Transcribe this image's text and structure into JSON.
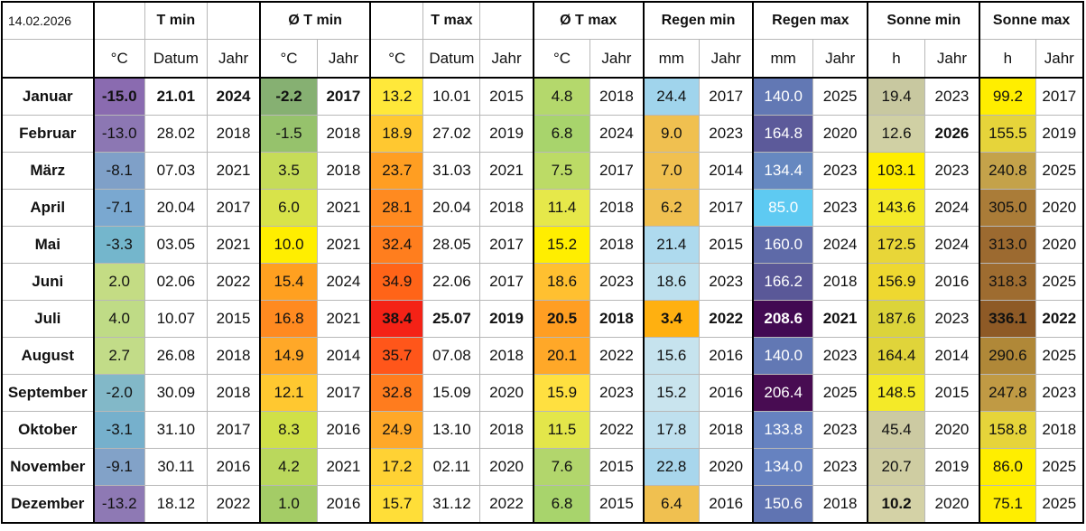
{
  "date": "14.02.2026",
  "headers": {
    "groups": [
      "T min",
      "Ø T min",
      "T max",
      "Ø T max",
      "Regen min",
      "Regen max",
      "Sonne min",
      "Sonne max"
    ],
    "units": [
      "°C",
      "Datum",
      "Jahr",
      "°C",
      "Jahr",
      "°C",
      "Datum",
      "Jahr",
      "°C",
      "Jahr",
      "mm",
      "Jahr",
      "mm",
      "Jahr",
      "h",
      "Jahr",
      "h",
      "Jahr"
    ]
  },
  "rows": [
    {
      "month": "Januar",
      "tmin": "-15.0",
      "tmin_date": "21.01",
      "tmin_year": "2024",
      "avg_tmin": "-2.2",
      "avg_tmin_year": "2017",
      "tmax": "13.2",
      "tmax_date": "10.01",
      "tmax_year": "2015",
      "avg_tmax": "4.8",
      "avg_tmax_year": "2018",
      "rain_min": "24.4",
      "rain_min_year": "2017",
      "rain_max": "140.0",
      "rain_max_year": "2025",
      "sun_min": "19.4",
      "sun_min_year": "2023",
      "sun_max": "99.2",
      "sun_max_year": "2017"
    },
    {
      "month": "Februar",
      "tmin": "-13.0",
      "tmin_date": "28.02",
      "tmin_year": "2018",
      "avg_tmin": "-1.5",
      "avg_tmin_year": "2018",
      "tmax": "18.9",
      "tmax_date": "27.02",
      "tmax_year": "2019",
      "avg_tmax": "6.8",
      "avg_tmax_year": "2024",
      "rain_min": "9.0",
      "rain_min_year": "2023",
      "rain_max": "164.8",
      "rain_max_year": "2020",
      "sun_min": "12.6",
      "sun_min_year": "2026",
      "sun_max": "155.5",
      "sun_max_year": "2019"
    },
    {
      "month": "März",
      "tmin": "-8.1",
      "tmin_date": "07.03",
      "tmin_year": "2021",
      "avg_tmin": "3.5",
      "avg_tmin_year": "2018",
      "tmax": "23.7",
      "tmax_date": "31.03",
      "tmax_year": "2021",
      "avg_tmax": "7.5",
      "avg_tmax_year": "2017",
      "rain_min": "7.0",
      "rain_min_year": "2014",
      "rain_max": "134.4",
      "rain_max_year": "2023",
      "sun_min": "103.1",
      "sun_min_year": "2023",
      "sun_max": "240.8",
      "sun_max_year": "2025"
    },
    {
      "month": "April",
      "tmin": "-7.1",
      "tmin_date": "20.04",
      "tmin_year": "2017",
      "avg_tmin": "6.0",
      "avg_tmin_year": "2021",
      "tmax": "28.1",
      "tmax_date": "20.04",
      "tmax_year": "2018",
      "avg_tmax": "11.4",
      "avg_tmax_year": "2018",
      "rain_min": "6.2",
      "rain_min_year": "2017",
      "rain_max": "85.0",
      "rain_max_year": "2023",
      "sun_min": "143.6",
      "sun_min_year": "2024",
      "sun_max": "305.0",
      "sun_max_year": "2020"
    },
    {
      "month": "Mai",
      "tmin": "-3.3",
      "tmin_date": "03.05",
      "tmin_year": "2021",
      "avg_tmin": "10.0",
      "avg_tmin_year": "2021",
      "tmax": "32.4",
      "tmax_date": "28.05",
      "tmax_year": "2017",
      "avg_tmax": "15.2",
      "avg_tmax_year": "2018",
      "rain_min": "21.4",
      "rain_min_year": "2015",
      "rain_max": "160.0",
      "rain_max_year": "2024",
      "sun_min": "172.5",
      "sun_min_year": "2024",
      "sun_max": "313.0",
      "sun_max_year": "2020"
    },
    {
      "month": "Juni",
      "tmin": "2.0",
      "tmin_date": "02.06",
      "tmin_year": "2022",
      "avg_tmin": "15.4",
      "avg_tmin_year": "2024",
      "tmax": "34.9",
      "tmax_date": "22.06",
      "tmax_year": "2017",
      "avg_tmax": "18.6",
      "avg_tmax_year": "2023",
      "rain_min": "18.6",
      "rain_min_year": "2023",
      "rain_max": "166.2",
      "rain_max_year": "2018",
      "sun_min": "156.9",
      "sun_min_year": "2016",
      "sun_max": "318.3",
      "sun_max_year": "2025"
    },
    {
      "month": "Juli",
      "tmin": "4.0",
      "tmin_date": "10.07",
      "tmin_year": "2015",
      "avg_tmin": "16.8",
      "avg_tmin_year": "2021",
      "tmax": "38.4",
      "tmax_date": "25.07",
      "tmax_year": "2019",
      "avg_tmax": "20.5",
      "avg_tmax_year": "2018",
      "rain_min": "3.4",
      "rain_min_year": "2022",
      "rain_max": "208.6",
      "rain_max_year": "2021",
      "sun_min": "187.6",
      "sun_min_year": "2023",
      "sun_max": "336.1",
      "sun_max_year": "2022"
    },
    {
      "month": "August",
      "tmin": "2.7",
      "tmin_date": "26.08",
      "tmin_year": "2018",
      "avg_tmin": "14.9",
      "avg_tmin_year": "2014",
      "tmax": "35.7",
      "tmax_date": "07.08",
      "tmax_year": "2018",
      "avg_tmax": "20.1",
      "avg_tmax_year": "2022",
      "rain_min": "15.6",
      "rain_min_year": "2016",
      "rain_max": "140.0",
      "rain_max_year": "2023",
      "sun_min": "164.4",
      "sun_min_year": "2014",
      "sun_max": "290.6",
      "sun_max_year": "2025"
    },
    {
      "month": "September",
      "tmin": "-2.0",
      "tmin_date": "30.09",
      "tmin_year": "2018",
      "avg_tmin": "12.1",
      "avg_tmin_year": "2017",
      "tmax": "32.8",
      "tmax_date": "15.09",
      "tmax_year": "2020",
      "avg_tmax": "15.9",
      "avg_tmax_year": "2023",
      "rain_min": "15.2",
      "rain_min_year": "2016",
      "rain_max": "206.4",
      "rain_max_year": "2025",
      "sun_min": "148.5",
      "sun_min_year": "2015",
      "sun_max": "247.8",
      "sun_max_year": "2023"
    },
    {
      "month": "Oktober",
      "tmin": "-3.1",
      "tmin_date": "31.10",
      "tmin_year": "2017",
      "avg_tmin": "8.3",
      "avg_tmin_year": "2016",
      "tmax": "24.9",
      "tmax_date": "13.10",
      "tmax_year": "2018",
      "avg_tmax": "11.5",
      "avg_tmax_year": "2022",
      "rain_min": "17.8",
      "rain_min_year": "2018",
      "rain_max": "133.8",
      "rain_max_year": "2023",
      "sun_min": "45.4",
      "sun_min_year": "2020",
      "sun_max": "158.8",
      "sun_max_year": "2018"
    },
    {
      "month": "November",
      "tmin": "-9.1",
      "tmin_date": "30.11",
      "tmin_year": "2016",
      "avg_tmin": "4.2",
      "avg_tmin_year": "2021",
      "tmax": "17.2",
      "tmax_date": "02.11",
      "tmax_year": "2020",
      "avg_tmax": "7.6",
      "avg_tmax_year": "2015",
      "rain_min": "22.8",
      "rain_min_year": "2020",
      "rain_max": "134.0",
      "rain_max_year": "2023",
      "sun_min": "20.7",
      "sun_min_year": "2019",
      "sun_max": "86.0",
      "sun_max_year": "2025"
    },
    {
      "month": "Dezember",
      "tmin": "-13.2",
      "tmin_date": "18.12",
      "tmin_year": "2022",
      "avg_tmin": "1.0",
      "avg_tmin_year": "2016",
      "tmax": "15.7",
      "tmax_date": "31.12",
      "tmax_year": "2022",
      "avg_tmax": "6.8",
      "avg_tmax_year": "2015",
      "rain_min": "6.4",
      "rain_min_year": "2016",
      "rain_max": "150.6",
      "rain_max_year": "2018",
      "sun_min": "10.2",
      "sun_min_year": "2020",
      "sun_max": "75.1",
      "sun_max_year": "2025"
    }
  ],
  "bold_cells": {
    "0": [
      "tmin",
      "tmin_date",
      "tmin_year",
      "avg_tmin",
      "avg_tmin_year"
    ],
    "1": [
      "sun_min_year"
    ],
    "6": [
      "tmax",
      "tmax_date",
      "tmax_year",
      "avg_tmax",
      "avg_tmax_year",
      "rain_min",
      "rain_min_year",
      "rain_max",
      "rain_max_year",
      "sun_max",
      "sun_max_year"
    ],
    "11": [
      "sun_min"
    ]
  },
  "colors": {
    "tmin": [
      "#8a6bb0",
      "#8c77b3",
      "#7fa0c8",
      "#7aa8d0",
      "#74b6cc",
      "#c4dc84",
      "#bfdb86",
      "#c2dc88",
      "#82b8c8",
      "#76b0cc",
      "#82a2c8",
      "#8e79b4"
    ],
    "avg_tmin": [
      "#86b072",
      "#96c26c",
      "#c6dc58",
      "#d8e34a",
      "#ffee00",
      "#ffa020",
      "#ff8a20",
      "#ffa828",
      "#ffc830",
      "#d0e048",
      "#bad85c",
      "#a4cc66"
    ],
    "tmax": [
      "#ffe83a",
      "#ffc830",
      "#ff9e22",
      "#ff8a20",
      "#ff7e1e",
      "#ff6418",
      "#f42216",
      "#ff561a",
      "#ff7c1e",
      "#ffa828",
      "#ffd234",
      "#ffde38"
    ],
    "avg_tmax": [
      "#b4d86c",
      "#a8d46c",
      "#bcdb66",
      "#e6e84a",
      "#ffee00",
      "#ffc030",
      "#ff9e22",
      "#ffa828",
      "#ffe040",
      "#e3e64a",
      "#b2d66c",
      "#a8d46c"
    ],
    "rain_min": [
      "#a0d4ec",
      "#f0c050",
      "#f0c050",
      "#f0c050",
      "#aedaee",
      "#bde0ee",
      "#ffb010",
      "#c6e3ee",
      "#c9e4ee",
      "#bfe0ee",
      "#a8d6ec",
      "#f0c050"
    ],
    "rain_max": [
      "#6278b4",
      "#5c5a9a",
      "#6688c0",
      "#5ecaf2",
      "#5e6aa8",
      "#5a5898",
      "#420a52",
      "#6278b4",
      "#480c52",
      "#6682c0",
      "#6682c0",
      "#6074b2"
    ],
    "sun_min": [
      "#c8c8a0",
      "#d0d0a4",
      "#ffee00",
      "#f4ea28",
      "#e8d638",
      "#eed830",
      "#dcd43a",
      "#e0d43a",
      "#f4ea28",
      "#cccaa2",
      "#cfcda2",
      "#d4d2a6"
    ],
    "sun_max": [
      "#ffee00",
      "#e6d43a",
      "#c4a24a",
      "#aa7c38",
      "#9c6a30",
      "#9e6c30",
      "#8e5a26",
      "#b08838",
      "#c09a44",
      "#e6d43a",
      "#ffee00",
      "#ffee00"
    ]
  }
}
